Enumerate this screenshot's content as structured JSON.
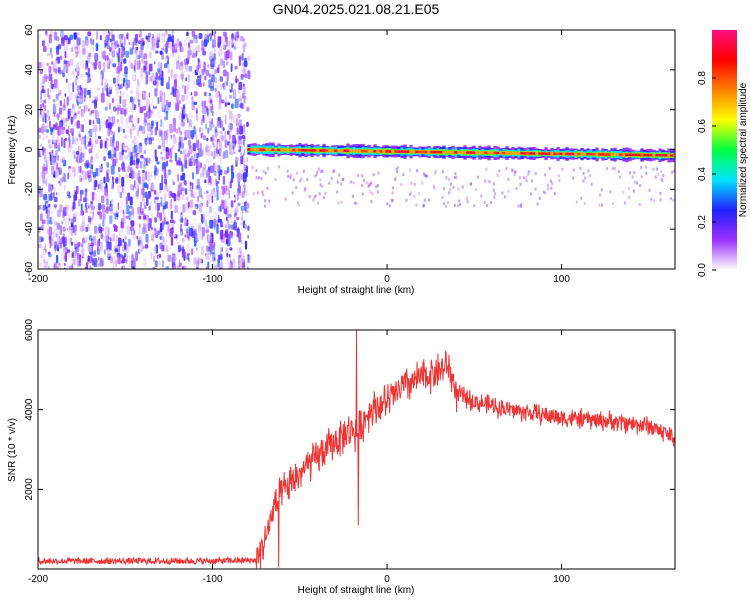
{
  "figure": {
    "title": "GN04.2025.021.08.21.E05"
  },
  "chart_data": [
    {
      "type": "heatmap",
      "xlabel": "Height of straight line (km)",
      "ylabel": "Frequency (Hz)",
      "xlim": [
        -200,
        165
      ],
      "ylim": [
        -60,
        60
      ],
      "xticks": [
        -200,
        -100,
        0,
        100
      ],
      "yticks": [
        -60,
        -40,
        -20,
        0,
        20,
        40,
        60
      ],
      "colorbar": {
        "label": "Normalized spectral amplitude",
        "ticks": [
          0.0,
          0.2,
          0.4,
          0.6,
          0.8
        ],
        "range": [
          0,
          1
        ],
        "colors": [
          "#ffffff",
          "#9b30ff",
          "#2020ff",
          "#00e5ff",
          "#00ff40",
          "#ffff00",
          "#ff8000",
          "#ff0000",
          "#ff1080"
        ]
      },
      "noise_region": {
        "x_start": -200,
        "x_end": -80,
        "freq_range": [
          -60,
          60
        ],
        "amplitude_range": [
          0.0,
          0.3
        ]
      },
      "signal_band": {
        "x_start": -80,
        "x_end": 165,
        "center_freq_start": 0,
        "center_freq_end": -3,
        "peak_amplitude": 0.95
      },
      "grid": false
    },
    {
      "type": "line",
      "xlabel": "Height of straight line (km)",
      "ylabel": "SNR (10 * v/v)",
      "xlim": [
        -200,
        165
      ],
      "ylim": [
        0,
        6000
      ],
      "xticks": [
        -200,
        -100,
        0,
        100
      ],
      "yticks": [
        2000,
        4000,
        6000
      ],
      "color": "#ee3333",
      "grid": false,
      "envelope": {
        "x": [
          -200,
          -100,
          -75,
          -70,
          -65,
          -60,
          -50,
          -40,
          -30,
          -20,
          -17,
          -10,
          0,
          10,
          20,
          30,
          35,
          40,
          50,
          70,
          100,
          130,
          150,
          165
        ],
        "y": [
          200,
          200,
          220,
          700,
          1500,
          1900,
          2400,
          2800,
          3200,
          3500,
          3400,
          4000,
          4200,
          4600,
          4800,
          5000,
          5100,
          4400,
          4200,
          4000,
          3800,
          3700,
          3600,
          3300
        ]
      },
      "spikes": [
        {
          "x": -17.5,
          "y": 6000
        },
        {
          "x": -16.5,
          "y": 1100
        },
        {
          "x": -62,
          "y": 50
        }
      ]
    }
  ]
}
